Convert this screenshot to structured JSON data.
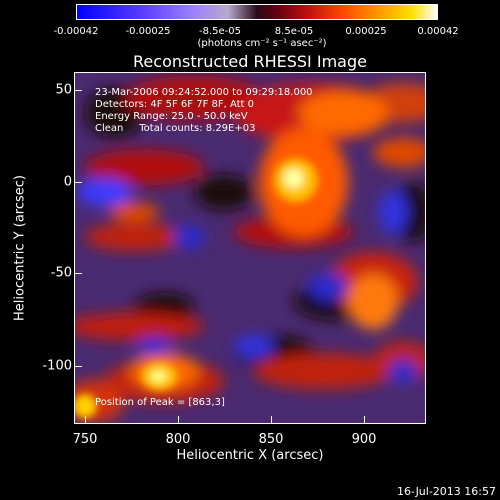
{
  "colorbar": {
    "ticks": [
      "-0.00042",
      "-0.00025",
      "-8.5e-05",
      "8.5e-05",
      "0.00025",
      "0.00042"
    ],
    "unit": "(photons cm⁻² s⁻¹ asec⁻²)"
  },
  "chart_data": {
    "type": "heatmap",
    "title": "Reconstructed RHESSI Image",
    "xlabel": "Heliocentric X (arcsec)",
    "ylabel": "Heliocentric Y (arcsec)",
    "xlim": [
      745,
      935
    ],
    "ylim": [
      -133,
      57
    ],
    "xticks": [
      "750",
      "800",
      "850",
      "900"
    ],
    "yticks": [
      "50",
      "0",
      "-50",
      "-100"
    ],
    "clim": [
      -0.00042,
      0.00042
    ],
    "info_lines": [
      "23-Mar-2006 09:24:52.000 to 09:29:18.000",
      "Detectors: 4F 5F 6F 7F 8F, Att 0",
      "Energy Range: 25.0 - 50.0 keV",
      "Clean     Total counts: 8.29E+03"
    ],
    "peak_label": "Position of Peak = [863,3]",
    "peak": [
      863,
      3
    ]
  },
  "footer": {
    "date": "16-Jul-2013 16:57"
  }
}
